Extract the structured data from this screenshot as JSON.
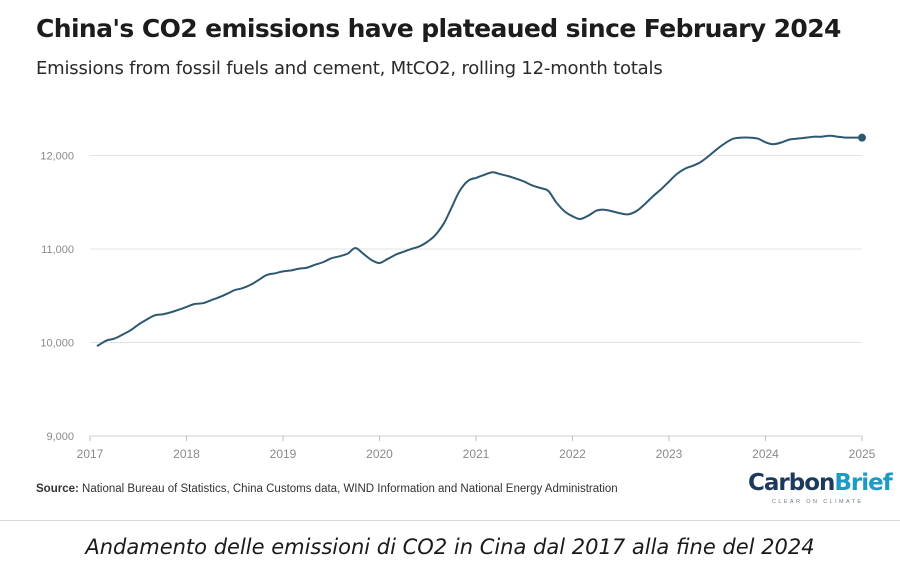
{
  "source_label": "Source:",
  "source_text": " National Bureau of Statistics, China Customs data, WIND Information and National Energy Administration",
  "logo": {
    "part1": "Carbon",
    "part2": "Brief",
    "tagline": "CLEAR ON CLIMATE"
  },
  "caption": "Andamento delle emissioni di CO2 in Cina dal 2017 alla fine del 2024",
  "colors": {
    "line": "#2e5870",
    "grid": "#e3e3e3",
    "axis_text": "#8a8a8a",
    "logo_dark": "#1d3a5c",
    "logo_light": "#1b9bc5"
  },
  "chart_data": {
    "type": "line",
    "title": "China's CO2 emissions have plateaued since February 2024",
    "subtitle": "Emissions from fossil fuels and cement, MtCO2, rolling 12-month totals",
    "xlabel": "",
    "ylabel": "",
    "xlim": [
      2017,
      2025
    ],
    "ylim": [
      9000,
      12400
    ],
    "grid": true,
    "legend": "none",
    "y_ticks": [
      9000,
      10000,
      11000,
      12000
    ],
    "y_tick_labels": [
      "9,000",
      "10,000",
      "11,000",
      "12,000"
    ],
    "x_ticks": [
      2017,
      2018,
      2019,
      2020,
      2021,
      2022,
      2023,
      2024,
      2025
    ],
    "x_tick_labels": [
      "2017",
      "2018",
      "2019",
      "2020",
      "2021",
      "2022",
      "2023",
      "2024",
      "2025"
    ],
    "series": [
      {
        "x": [
          2017.08,
          2017.17,
          2017.25,
          2017.33,
          2017.42,
          2017.5,
          2017.58,
          2017.67,
          2017.75,
          2017.83,
          2017.92,
          2018.0,
          2018.08,
          2018.17,
          2018.25,
          2018.33,
          2018.42,
          2018.5,
          2018.58,
          2018.67,
          2018.75,
          2018.83,
          2018.92,
          2019.0,
          2019.08,
          2019.17,
          2019.25,
          2019.33,
          2019.42,
          2019.5,
          2019.58,
          2019.67,
          2019.75,
          2019.83,
          2019.92,
          2020.0,
          2020.08,
          2020.17,
          2020.25,
          2020.33,
          2020.42,
          2020.5,
          2020.58,
          2020.67,
          2020.75,
          2020.83,
          2020.92,
          2021.0,
          2021.08,
          2021.17,
          2021.25,
          2021.33,
          2021.42,
          2021.5,
          2021.58,
          2021.67,
          2021.75,
          2021.83,
          2021.92,
          2022.0,
          2022.08,
          2022.17,
          2022.25,
          2022.33,
          2022.42,
          2022.5,
          2022.58,
          2022.67,
          2022.75,
          2022.83,
          2022.92,
          2023.0,
          2023.08,
          2023.17,
          2023.25,
          2023.33,
          2023.42,
          2023.5,
          2023.58,
          2023.67,
          2023.75,
          2023.83,
          2023.92,
          2024.0,
          2024.08,
          2024.17,
          2024.25,
          2024.33,
          2024.42,
          2024.5,
          2024.58,
          2024.67,
          2024.75,
          2024.83,
          2024.92,
          2025.0
        ],
        "values": [
          9965,
          10020,
          10040,
          10080,
          10130,
          10190,
          10240,
          10290,
          10300,
          10320,
          10350,
          10380,
          10410,
          10420,
          10450,
          10480,
          10520,
          10560,
          10580,
          10620,
          10670,
          10720,
          10740,
          10760,
          10770,
          10790,
          10800,
          10830,
          10860,
          10900,
          10920,
          10950,
          11010,
          10950,
          10880,
          10850,
          10890,
          10940,
          10970,
          11000,
          11030,
          11080,
          11150,
          11280,
          11450,
          11620,
          11730,
          11760,
          11790,
          11820,
          11800,
          11780,
          11750,
          11720,
          11680,
          11650,
          11620,
          11500,
          11400,
          11350,
          11320,
          11360,
          11410,
          11420,
          11400,
          11380,
          11370,
          11410,
          11480,
          11560,
          11640,
          11720,
          11800,
          11860,
          11890,
          11930,
          12000,
          12070,
          12130,
          12180,
          12190,
          12190,
          12180,
          12140,
          12120,
          12140,
          12170,
          12180,
          12190,
          12200,
          12200,
          12210,
          12200,
          12190,
          12190,
          12190
        ]
      }
    ],
    "end_marker": true
  }
}
